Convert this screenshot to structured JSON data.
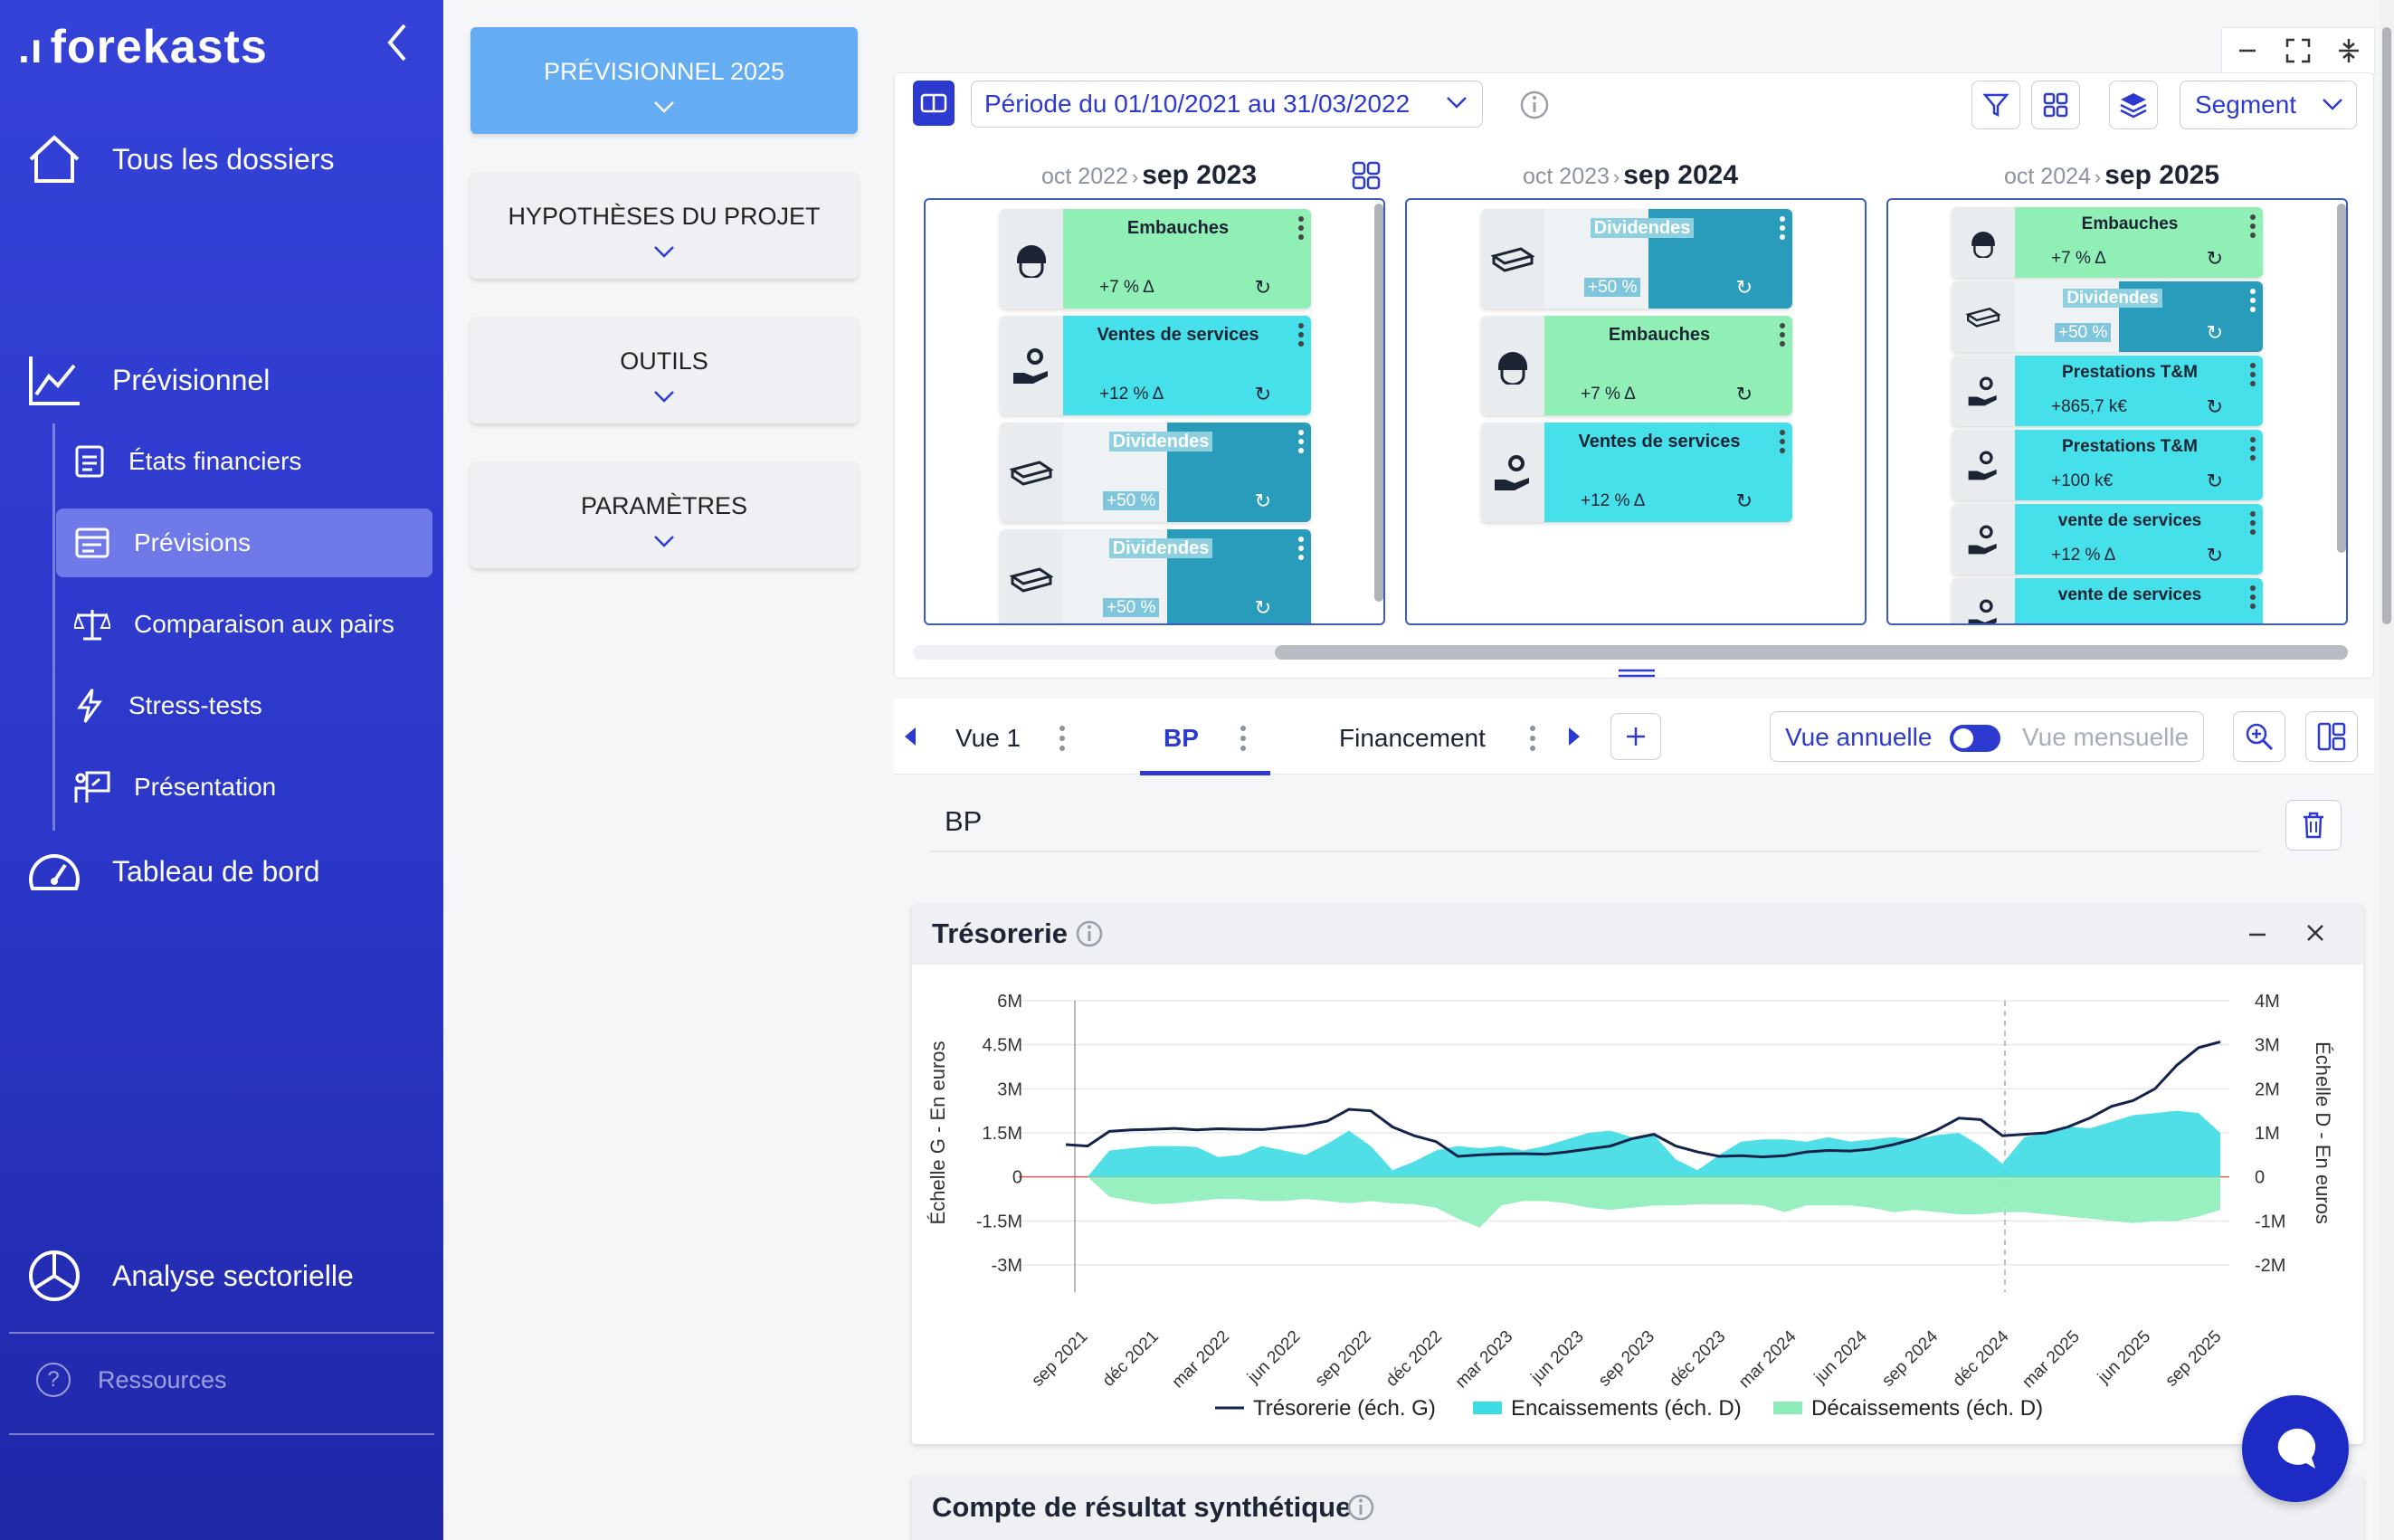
{
  "brand": {
    "name": "forekasts"
  },
  "sidebar": {
    "all_folders": "Tous les dossiers",
    "forecast": "Prévisionnel",
    "sub": [
      "États financiers",
      "Prévisions",
      "Comparaison aux pairs",
      "Stress-tests",
      "Présentation"
    ],
    "dashboard": "Tableau de bord",
    "sector": "Analyse sectorielle",
    "resources": "Ressources"
  },
  "menu": {
    "items": [
      "PRÉVISIONNEL 2025",
      "HYPOTHÈSES DU PROJET",
      "OUTILS",
      "PARAMÈTRES"
    ]
  },
  "toolbar": {
    "period": "Période du 01/10/2021 au 31/03/2022",
    "segment": "Segment"
  },
  "years": [
    {
      "from": "oct 2022",
      "to": "sep 2023"
    },
    {
      "from": "oct 2023",
      "to": "sep 2024"
    },
    {
      "from": "oct 2024",
      "to": "sep 2025"
    }
  ],
  "cards": {
    "y1": [
      {
        "title": "Embauches",
        "value": "+7 % Δ"
      },
      {
        "title": "Ventes de services",
        "value": "+12 % Δ"
      },
      {
        "title": "Dividendes",
        "value": "+50 %"
      },
      {
        "title": "Dividendes",
        "value": "+50 %"
      }
    ],
    "y2": [
      {
        "title": "Dividendes",
        "value": "+50 %"
      },
      {
        "title": "Embauches",
        "value": "+7 % Δ"
      },
      {
        "title": "Ventes de services",
        "value": "+12 % Δ"
      }
    ],
    "y3": [
      {
        "title": "Embauches",
        "value": "+7 % Δ"
      },
      {
        "title": "Dividendes",
        "value": "+50 %"
      },
      {
        "title": "Prestations T&M",
        "value": "+865,7 k€"
      },
      {
        "title": "Prestations T&M",
        "value": "+100 k€"
      },
      {
        "title": "vente de services",
        "value": "+12 % Δ"
      },
      {
        "title": "vente de services",
        "value": ""
      }
    ]
  },
  "tabs": {
    "items": [
      "Vue 1",
      "BP",
      "Financement"
    ],
    "active": "BP",
    "annual": "Vue annuelle",
    "monthly": "Vue mensuelle"
  },
  "view": {
    "name": "BP"
  },
  "chart_card": {
    "title": "Trésorerie"
  },
  "card2": {
    "title": "Compte de résultat synthétique"
  },
  "chart_data": {
    "type": "line",
    "title": "Trésorerie",
    "ylabel": "Échelle G - En euros",
    "y2label": "Échelle D - En euros",
    "ylim": [
      -3000000,
      6000000
    ],
    "y2lim": [
      -2000000,
      4000000
    ],
    "yticks": [
      "6M",
      "4.5M",
      "3M",
      "1.5M",
      "0",
      "-1.5M",
      "-3M"
    ],
    "y2ticks": [
      "4M",
      "3M",
      "2M",
      "1M",
      "0",
      "-1M",
      "-2M"
    ],
    "xticks": [
      "sep 2021",
      "déc 2021",
      "mar 2022",
      "jun 2022",
      "sep 2022",
      "déc 2022",
      "mar 2023",
      "jun 2023",
      "sep 2023",
      "déc 2023",
      "mar 2024",
      "jun 2024",
      "sep 2024",
      "déc 2024",
      "mar 2025",
      "jun 2025",
      "sep 2025"
    ],
    "legend": [
      "Trésorerie (éch. G)",
      "Encaissements (éch. D)",
      "Décaissements (éch. D)"
    ],
    "series": [
      {
        "name": "Trésorerie (éch. G)",
        "axis": "left",
        "color": "#14234b",
        "values": [
          1100000,
          1050000,
          1550000,
          1600000,
          1620000,
          1650000,
          1600000,
          1640000,
          1620000,
          1610000,
          1680000,
          1750000,
          1900000,
          2300000,
          2250000,
          1700000,
          1400000,
          1200000,
          700000,
          750000,
          780000,
          790000,
          770000,
          850000,
          950000,
          1050000,
          1300000,
          1450000,
          1050000,
          850000,
          700000,
          720000,
          680000,
          720000,
          850000,
          900000,
          880000,
          950000,
          1100000,
          1300000,
          1600000,
          2000000,
          1950000,
          1400000,
          1450000,
          1500000,
          1700000,
          2000000,
          2400000,
          2600000,
          3000000,
          3800000,
          4400000,
          4600000
        ]
      },
      {
        "name": "Encaissements (éch. D)",
        "axis": "right",
        "color": "#3ddbe3",
        "values": [
          0,
          0,
          600000,
          650000,
          700000,
          700000,
          680000,
          450000,
          500000,
          700000,
          600000,
          500000,
          750000,
          1050000,
          700000,
          150000,
          350000,
          600000,
          700000,
          650000,
          700000,
          600000,
          700000,
          850000,
          1000000,
          1050000,
          900000,
          950000,
          400000,
          150000,
          500000,
          800000,
          850000,
          850000,
          800000,
          900000,
          800000,
          850000,
          900000,
          850000,
          950000,
          1000000,
          700000,
          300000,
          900000,
          1000000,
          1150000,
          1100000,
          1250000,
          1400000,
          1450000,
          1500000,
          1450000,
          1000000
        ]
      },
      {
        "name": "Décaissements (éch. D)",
        "axis": "right",
        "color": "#8dedb9",
        "values": [
          0,
          0,
          -450000,
          -550000,
          -620000,
          -600000,
          -550000,
          -500000,
          -500000,
          -550000,
          -550000,
          -500000,
          -550000,
          -600000,
          -550000,
          -600000,
          -620000,
          -700000,
          -950000,
          -1150000,
          -650000,
          -550000,
          -550000,
          -600000,
          -700000,
          -750000,
          -700000,
          -650000,
          -650000,
          -620000,
          -620000,
          -620000,
          -650000,
          -800000,
          -650000,
          -650000,
          -650000,
          -700000,
          -800000,
          -750000,
          -800000,
          -850000,
          -850000,
          -800000,
          -800000,
          -850000,
          -900000,
          -950000,
          -1000000,
          -1050000,
          -1000000,
          -1000000,
          -900000,
          -750000
        ]
      }
    ]
  }
}
